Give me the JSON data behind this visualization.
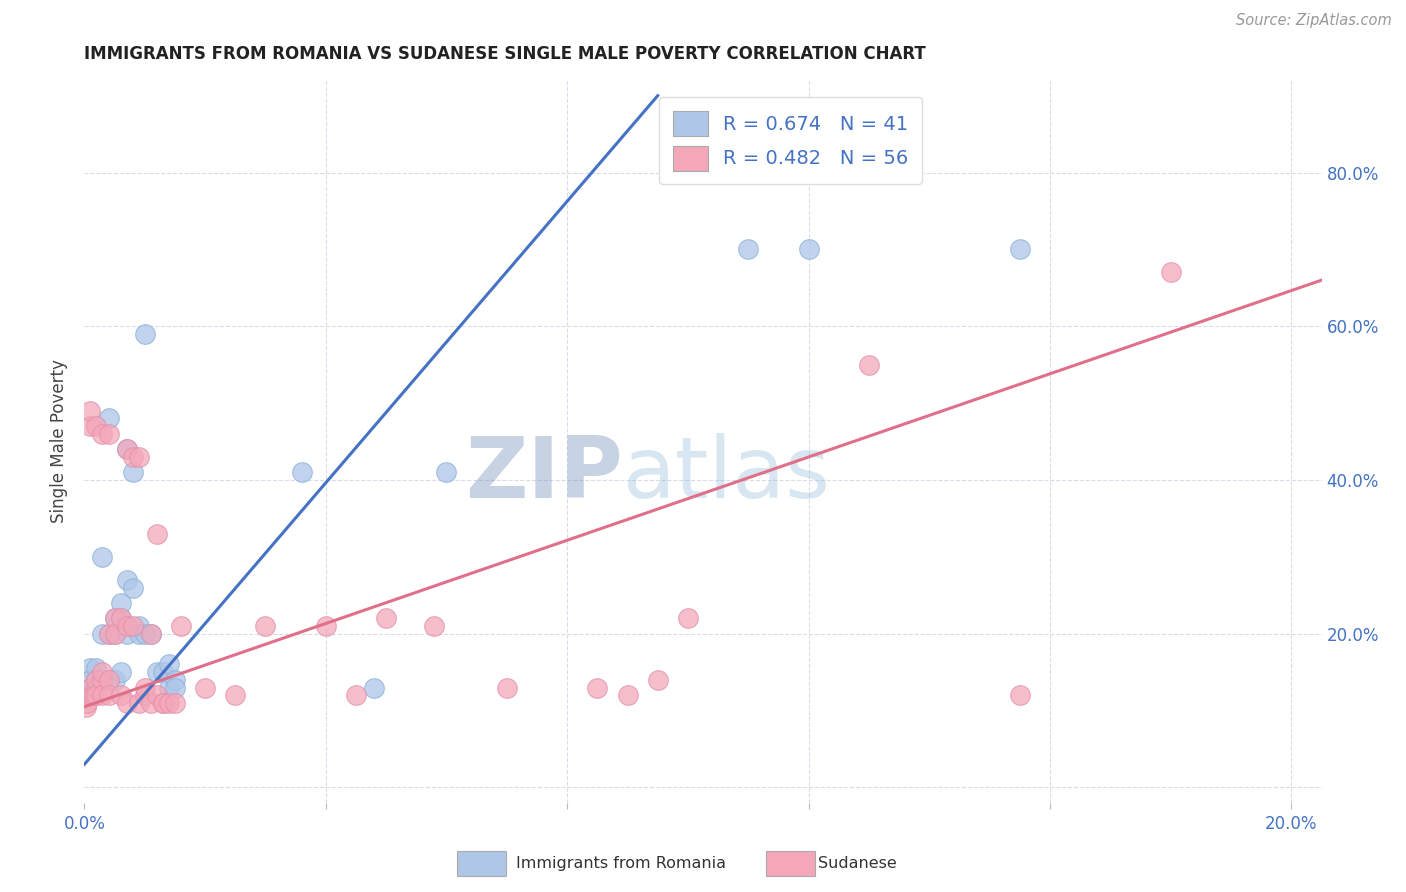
{
  "title": "IMMIGRANTS FROM ROMANIA VS SUDANESE SINGLE MALE POVERTY CORRELATION CHART",
  "source": "Source: ZipAtlas.com",
  "ylabel": "Single Male Poverty",
  "xlim": [
    0.0,
    0.205
  ],
  "ylim": [
    -0.02,
    0.92
  ],
  "x_ticks": [
    0.0,
    0.04,
    0.08,
    0.12,
    0.16,
    0.2
  ],
  "x_tick_labels": [
    "0.0%",
    "",
    "",
    "",
    "",
    "20.0%"
  ],
  "y_ticks": [
    0.0,
    0.2,
    0.4,
    0.6,
    0.8
  ],
  "y_tick_labels": [
    "",
    "20.0%",
    "40.0%",
    "60.0%",
    "80.0%"
  ],
  "romania_color": "#aec6e8",
  "sudanese_color": "#f4a7b9",
  "romania_line_color": "#4472c4",
  "sudanese_line_color": "#e0708a",
  "romania_R": 0.674,
  "romania_N": 41,
  "sudanese_R": 0.482,
  "sudanese_N": 56,
  "watermark_zip": "ZIP",
  "watermark_atlas": "atlas",
  "tick_color": "#4472c4",
  "grid_color": "#d8dce8",
  "romania_points_x": [
    0.0005,
    0.001,
    0.001,
    0.001,
    0.002,
    0.002,
    0.002,
    0.003,
    0.003,
    0.003,
    0.004,
    0.004,
    0.004,
    0.005,
    0.005,
    0.005,
    0.006,
    0.006,
    0.006,
    0.007,
    0.007,
    0.007,
    0.008,
    0.008,
    0.009,
    0.009,
    0.01,
    0.01,
    0.011,
    0.012,
    0.013,
    0.014,
    0.014,
    0.015,
    0.015,
    0.036,
    0.048,
    0.06,
    0.11,
    0.12,
    0.155
  ],
  "romania_points_y": [
    0.125,
    0.155,
    0.14,
    0.13,
    0.155,
    0.14,
    0.13,
    0.3,
    0.2,
    0.14,
    0.48,
    0.2,
    0.14,
    0.22,
    0.2,
    0.14,
    0.22,
    0.24,
    0.15,
    0.44,
    0.27,
    0.2,
    0.41,
    0.26,
    0.21,
    0.2,
    0.59,
    0.2,
    0.2,
    0.15,
    0.15,
    0.16,
    0.13,
    0.14,
    0.13,
    0.41,
    0.13,
    0.41,
    0.7,
    0.7,
    0.7
  ],
  "sudanese_points_x": [
    0.0003,
    0.0005,
    0.001,
    0.001,
    0.001,
    0.001,
    0.0015,
    0.002,
    0.002,
    0.002,
    0.002,
    0.003,
    0.003,
    0.003,
    0.003,
    0.004,
    0.004,
    0.004,
    0.004,
    0.005,
    0.005,
    0.006,
    0.006,
    0.007,
    0.007,
    0.007,
    0.008,
    0.008,
    0.009,
    0.009,
    0.01,
    0.01,
    0.011,
    0.011,
    0.012,
    0.012,
    0.013,
    0.013,
    0.014,
    0.015,
    0.016,
    0.02,
    0.025,
    0.03,
    0.04,
    0.045,
    0.05,
    0.058,
    0.07,
    0.085,
    0.09,
    0.095,
    0.1,
    0.13,
    0.155,
    0.18
  ],
  "sudanese_points_y": [
    0.105,
    0.11,
    0.12,
    0.13,
    0.47,
    0.49,
    0.12,
    0.13,
    0.14,
    0.12,
    0.47,
    0.14,
    0.15,
    0.12,
    0.46,
    0.14,
    0.46,
    0.2,
    0.12,
    0.22,
    0.2,
    0.22,
    0.12,
    0.44,
    0.21,
    0.11,
    0.21,
    0.43,
    0.43,
    0.11,
    0.12,
    0.13,
    0.2,
    0.11,
    0.12,
    0.33,
    0.11,
    0.11,
    0.11,
    0.11,
    0.21,
    0.13,
    0.12,
    0.21,
    0.21,
    0.12,
    0.22,
    0.21,
    0.13,
    0.13,
    0.12,
    0.14,
    0.22,
    0.55,
    0.12,
    0.67
  ],
  "romania_line_x": [
    0.0,
    0.095
  ],
  "romania_line_y": [
    0.03,
    0.9
  ],
  "sudanese_line_x": [
    0.0,
    0.205
  ],
  "sudanese_line_y": [
    0.105,
    0.66
  ]
}
